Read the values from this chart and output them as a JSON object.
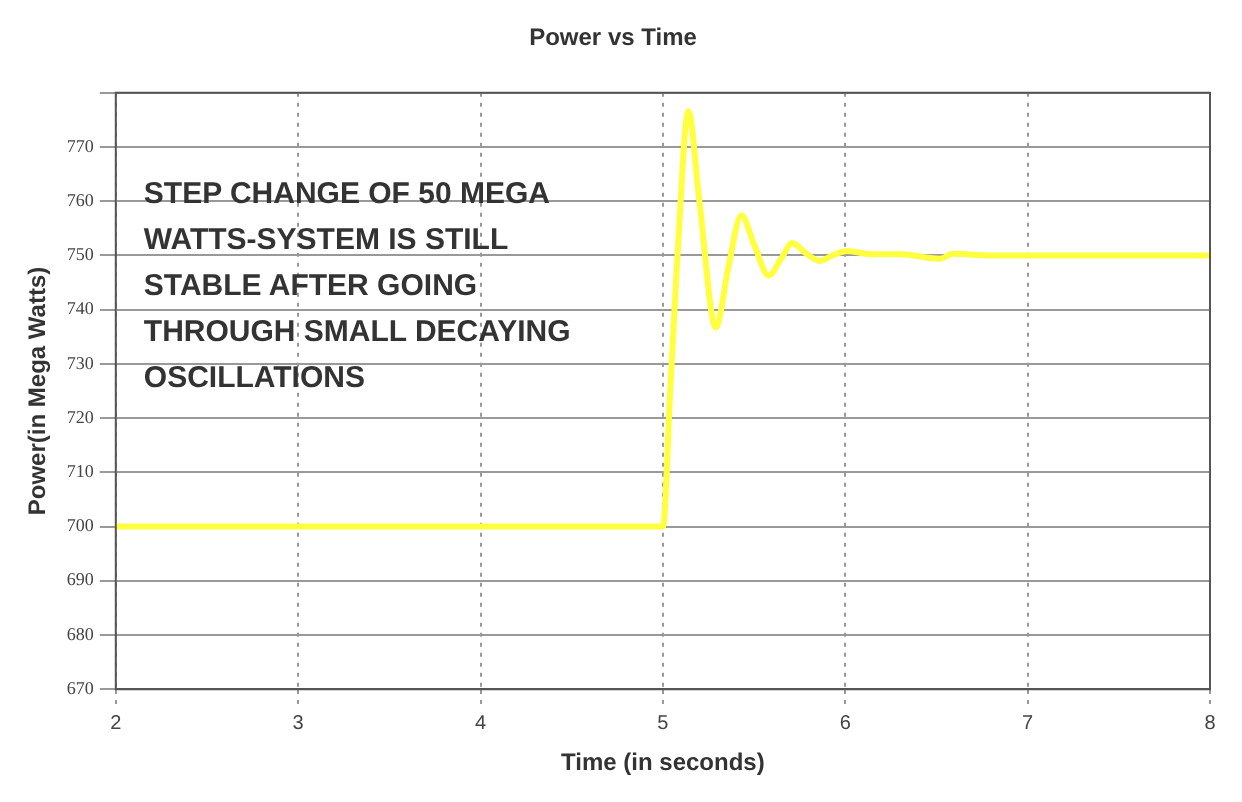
{
  "chart_data": {
    "type": "line",
    "title": "Power vs Time",
    "xlabel": "Time (in seconds)",
    "ylabel": "Power(in Mega Watts)",
    "annotations": [
      "STEP CHANGE OF 50 MEGA WATTS-SYSTEM IS STILL STABLE AFTER GOING THROUGH SMALL DECAYING OSCILLATIONS"
    ],
    "xlim": [
      2,
      8
    ],
    "xticks": [
      2,
      3,
      4,
      5,
      6,
      7,
      8
    ],
    "ylim": [
      670,
      780
    ],
    "yticks": [
      670,
      680,
      690,
      700,
      710,
      720,
      730,
      740,
      750,
      760,
      770,
      {
        "value": 780,
        "label": null
      }
    ],
    "grid": true,
    "legend": false,
    "marker": "none",
    "line_style": "solid",
    "series": [
      {
        "color": "#ffff40",
        "x": [
          2,
          5.0,
          5.04,
          5.08,
          5.14,
          5.2,
          5.29,
          5.36,
          5.43,
          5.5,
          5.58,
          5.65,
          5.71,
          5.78,
          5.86,
          5.93,
          6.01,
          6.15,
          6.3,
          6.52,
          6.59,
          6.8,
          8
        ],
        "values": [
          700,
          700,
          725,
          750,
          776.6,
          760,
          736.7,
          748,
          757.4,
          752,
          746.3,
          749.5,
          752.3,
          750.5,
          749,
          750,
          750.8,
          750.2,
          750.2,
          749.4,
          750.3,
          750,
          750
        ]
      }
    ]
  }
}
